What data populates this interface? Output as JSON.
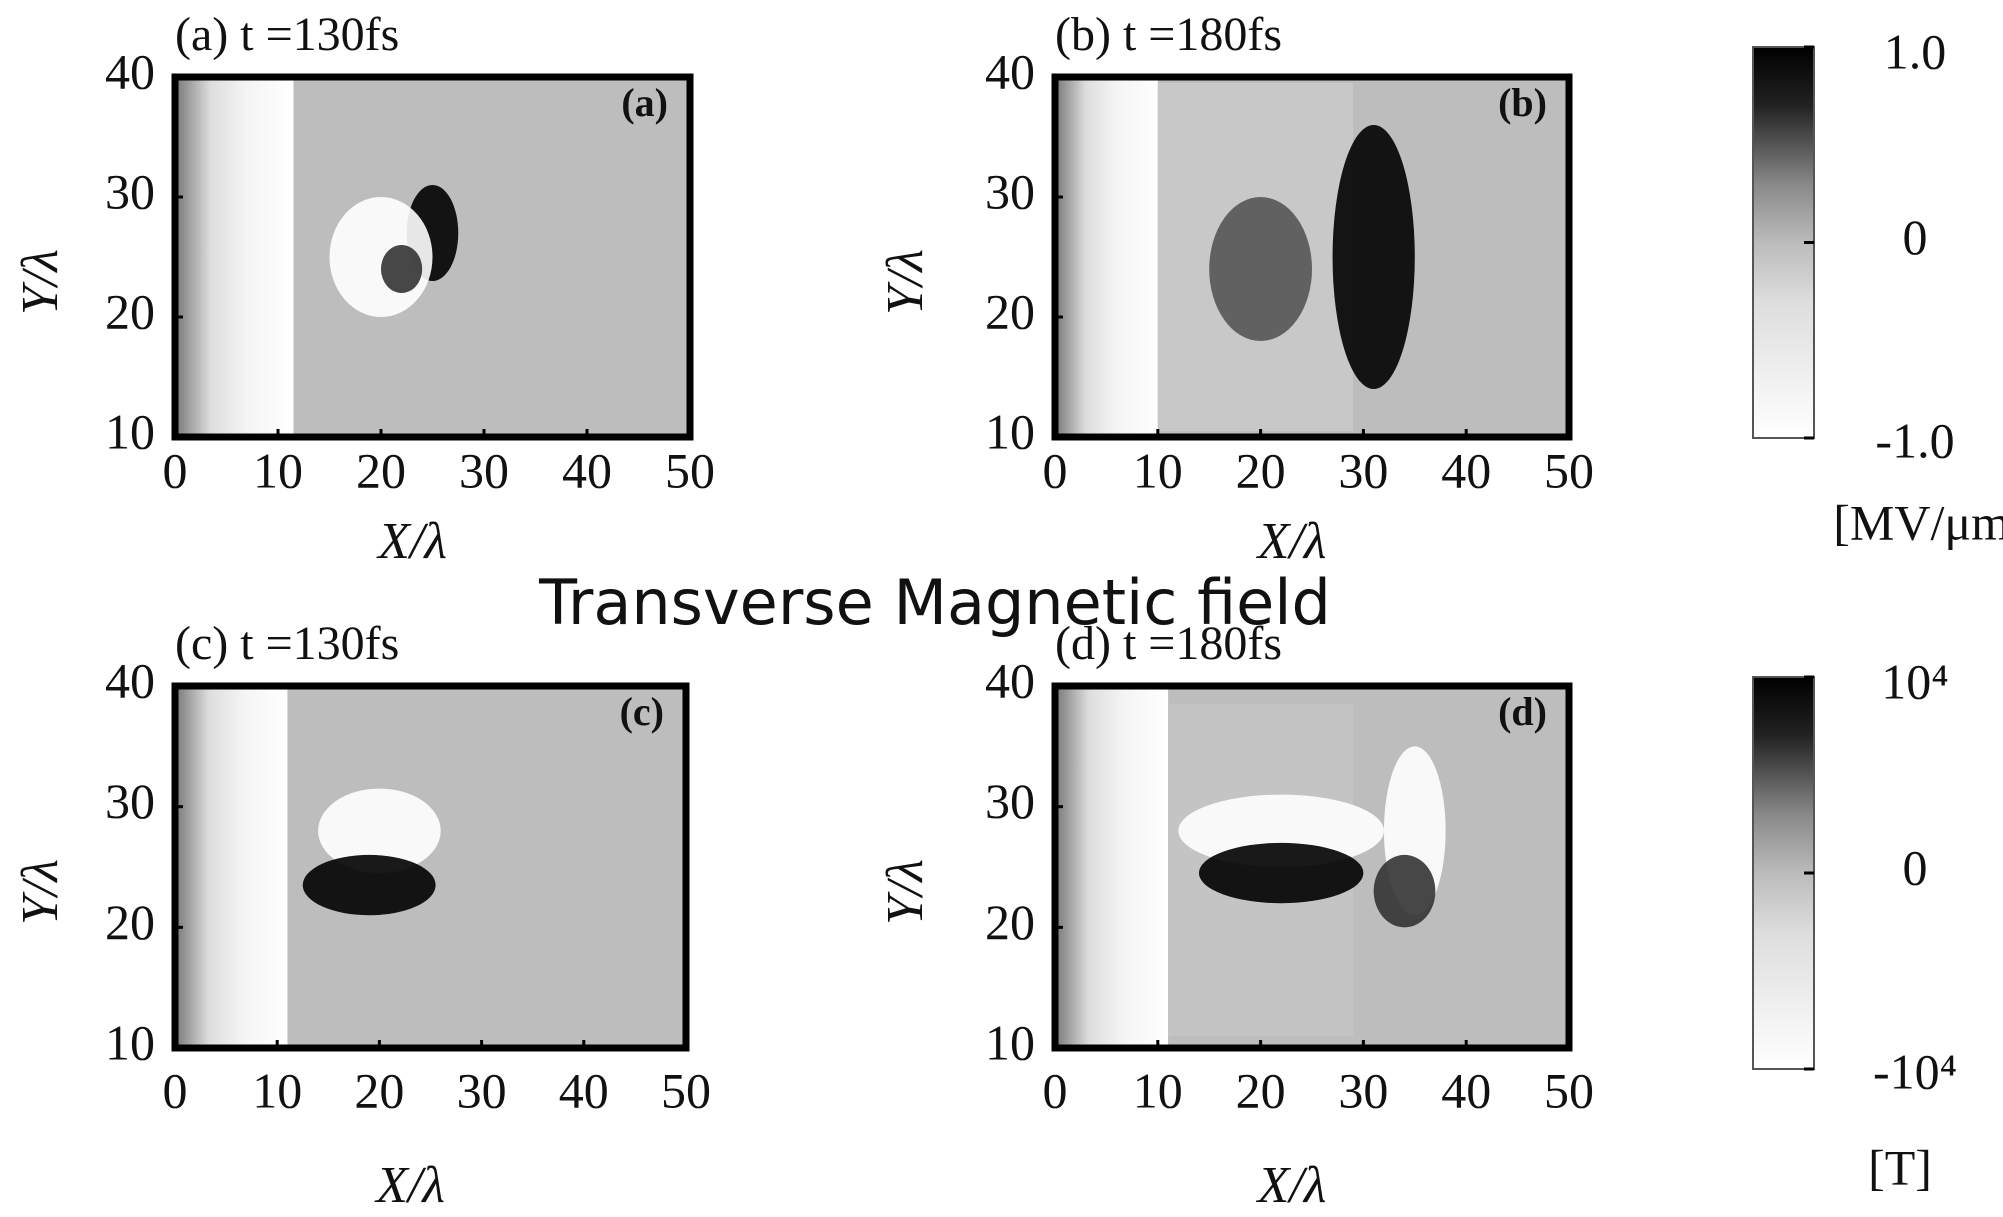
{
  "heading": "Transverse Magnetic field",
  "chart_data": [
    {
      "type": "heatmap",
      "title": "(a) t =130fs",
      "panel_label": "(a)",
      "xlabel": "X/λ",
      "ylabel": "Y/λ",
      "xlim": [
        0,
        50
      ],
      "ylim": [
        10,
        40
      ],
      "xticks": [
        0,
        10,
        20,
        30,
        40,
        50
      ],
      "yticks": [
        10,
        20,
        30,
        40
      ]
    },
    {
      "type": "heatmap",
      "title": "(b) t =180fs",
      "panel_label": "(b)",
      "xlabel": "X/λ",
      "ylabel": "Y/λ",
      "xlim": [
        0,
        50
      ],
      "ylim": [
        10,
        40
      ],
      "xticks": [
        0,
        10,
        20,
        30,
        40,
        50
      ],
      "yticks": [
        10,
        20,
        30,
        40
      ]
    },
    {
      "type": "heatmap",
      "title": "(c) t =130fs",
      "panel_label": "(c)",
      "xlabel": "X/λ",
      "ylabel": "Y/λ",
      "xlim": [
        0,
        50
      ],
      "ylim": [
        10,
        40
      ],
      "xticks": [
        0,
        10,
        20,
        30,
        40,
        50
      ],
      "yticks": [
        10,
        20,
        30,
        40
      ]
    },
    {
      "type": "heatmap",
      "title": "(d) t =180fs",
      "panel_label": "(d)",
      "xlabel": "X/λ",
      "ylabel": "Y/λ",
      "xlim": [
        0,
        50
      ],
      "ylim": [
        10,
        40
      ],
      "xticks": [
        0,
        10,
        20,
        30,
        40,
        50
      ],
      "yticks": [
        10,
        20,
        30,
        40
      ]
    }
  ],
  "colorbars": [
    {
      "label": "[MV/μm]",
      "lim": [
        -1.0,
        1.0
      ],
      "ticks": [
        {
          "value": 1.0,
          "label": "1.0"
        },
        0,
        {
          "value": -1.0,
          "label": "-1.0"
        }
      ]
    },
    {
      "label": "[T]",
      "lim": [
        -10000,
        10000
      ],
      "ticks": [
        {
          "value": 10000,
          "label": "10⁴"
        },
        0,
        {
          "value": -10000,
          "label": "-10⁴"
        }
      ]
    }
  ]
}
